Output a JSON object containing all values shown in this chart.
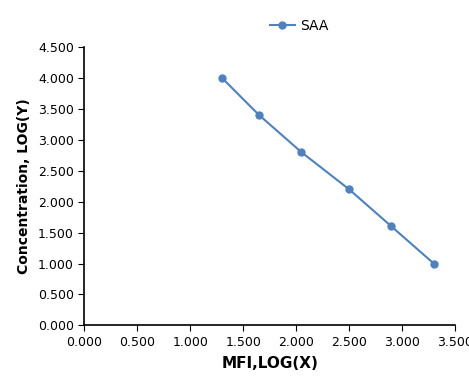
{
  "x": [
    1.3,
    1.65,
    2.05,
    2.5,
    2.9,
    3.3
  ],
  "y": [
    4.0,
    3.4,
    2.8,
    2.2,
    1.6,
    1.0
  ],
  "line_color": "#4f81bd",
  "marker": "o",
  "marker_size": 5,
  "line_width": 1.5,
  "legend_label": "SAA",
  "xlabel": "MFI,LOG(X)",
  "ylabel": "Concentration, LOG(Y)",
  "xlim": [
    0.0,
    3.5
  ],
  "ylim": [
    0.0,
    4.5
  ],
  "xticks": [
    0.0,
    0.5,
    1.0,
    1.5,
    2.0,
    2.5,
    3.0,
    3.5
  ],
  "yticks": [
    0.0,
    0.5,
    1.0,
    1.5,
    2.0,
    2.5,
    3.0,
    3.5,
    4.0,
    4.5
  ],
  "background_color": "#ffffff",
  "xlabel_fontsize": 11,
  "ylabel_fontsize": 10,
  "tick_fontsize": 9,
  "legend_fontsize": 10,
  "axis_color": "#000000",
  "spine_linewidth": 1.2
}
